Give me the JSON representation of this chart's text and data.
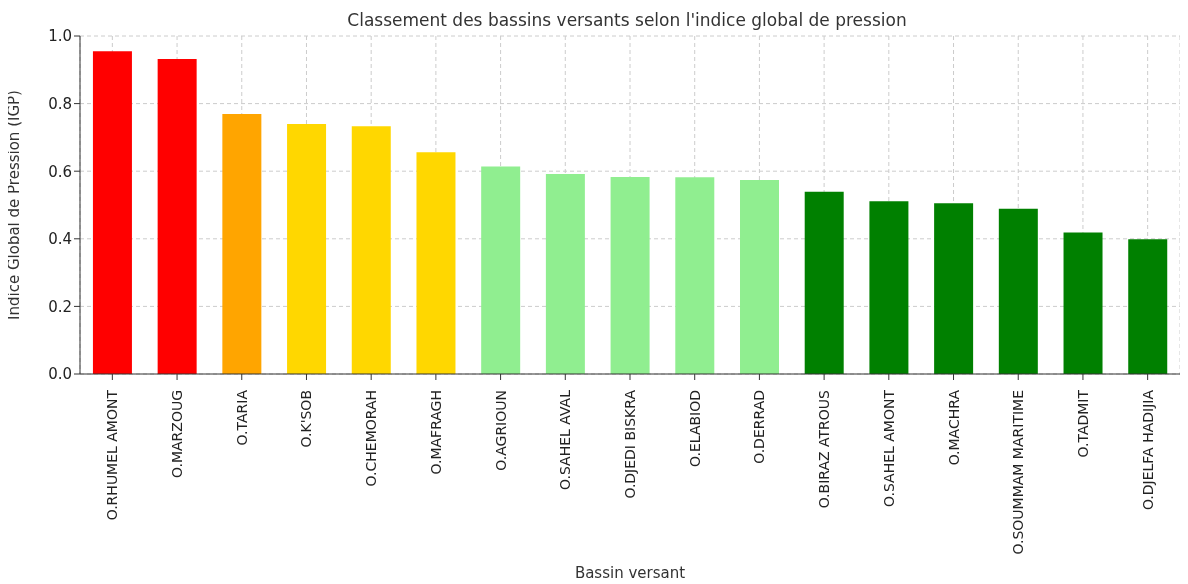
{
  "chart_data": {
    "type": "bar",
    "title": "Classement des bassins versants selon l'indice global de pression",
    "xlabel": "Bassin versant",
    "ylabel": "Indice Global de Pression (IGP)",
    "categories": [
      "O.RHUMEL AMONT",
      "O.MARZOUG",
      "O.TARIA",
      "O.K'SOB",
      "O.CHEMORAH",
      "O.MAFRAGH",
      "O.AGRIOUN",
      "O.SAHEL AVAL",
      "O.DJEDI BISKRA",
      "O.ELABIOD",
      "O.DERRAD",
      "O.BIRAZ ATROUS",
      "O.SAHEL AMONT",
      "O.MACHRA",
      "O.SOUMMAM MARITIME",
      "O.TADMIT",
      "O.DJELFA HADIJIA"
    ],
    "values": [
      0.955,
      0.932,
      0.769,
      0.74,
      0.733,
      0.656,
      0.614,
      0.592,
      0.583,
      0.582,
      0.574,
      0.539,
      0.511,
      0.505,
      0.489,
      0.419,
      0.399
    ],
    "colors": [
      "#ff0000",
      "#ff0000",
      "#ffa500",
      "#ffd700",
      "#ffd700",
      "#ffd700",
      "#90ee90",
      "#90ee90",
      "#90ee90",
      "#90ee90",
      "#90ee90",
      "#008000",
      "#008000",
      "#008000",
      "#008000",
      "#008000",
      "#008000"
    ],
    "ylim": [
      0,
      1
    ],
    "yticks": [
      {
        "value": 0,
        "label": "0.0"
      },
      {
        "value": 0.2,
        "label": "0.2"
      },
      {
        "value": 0.4,
        "label": "0.4"
      },
      {
        "value": 0.6,
        "label": "0.6"
      },
      {
        "value": 0.8,
        "label": "0.8"
      },
      {
        "value": 1,
        "label": "1.0"
      }
    ],
    "grid": true
  }
}
